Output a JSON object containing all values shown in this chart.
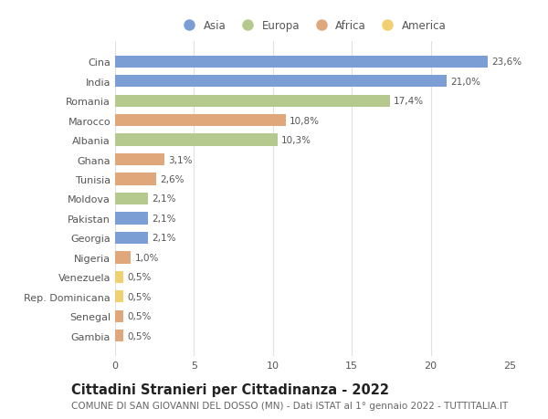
{
  "countries": [
    "Cina",
    "India",
    "Romania",
    "Marocco",
    "Albania",
    "Ghana",
    "Tunisia",
    "Moldova",
    "Pakistan",
    "Georgia",
    "Nigeria",
    "Venezuela",
    "Rep. Dominicana",
    "Senegal",
    "Gambia"
  ],
  "values": [
    23.6,
    21.0,
    17.4,
    10.8,
    10.3,
    3.1,
    2.6,
    2.1,
    2.1,
    2.1,
    1.0,
    0.5,
    0.5,
    0.5,
    0.5
  ],
  "labels": [
    "23,6%",
    "21,0%",
    "17,4%",
    "10,8%",
    "10,3%",
    "3,1%",
    "2,6%",
    "2,1%",
    "2,1%",
    "2,1%",
    "1,0%",
    "0,5%",
    "0,5%",
    "0,5%",
    "0,5%"
  ],
  "continents": [
    "Asia",
    "Asia",
    "Europa",
    "Africa",
    "Europa",
    "Africa",
    "Africa",
    "Europa",
    "Asia",
    "Asia",
    "Africa",
    "America",
    "America",
    "Africa",
    "Africa"
  ],
  "continent_colors": {
    "Asia": "#7b9fd4",
    "Europa": "#b5c98e",
    "Africa": "#e0a87a",
    "America": "#f0d070"
  },
  "legend_order": [
    "Asia",
    "Europa",
    "Africa",
    "America"
  ],
  "legend_colors": [
    "#7b9fd4",
    "#b5c98e",
    "#e0a87a",
    "#f0d070"
  ],
  "title": "Cittadini Stranieri per Cittadinanza - 2022",
  "subtitle": "COMUNE DI SAN GIOVANNI DEL DOSSO (MN) - Dati ISTAT al 1° gennaio 2022 - TUTTITALIA.IT",
  "xlim": [
    0,
    25
  ],
  "xticks": [
    0,
    5,
    10,
    15,
    20,
    25
  ],
  "background_color": "#ffffff",
  "bar_height": 0.62,
  "title_fontsize": 10.5,
  "subtitle_fontsize": 7.5,
  "label_fontsize": 7.5,
  "tick_fontsize": 8,
  "legend_fontsize": 8.5
}
